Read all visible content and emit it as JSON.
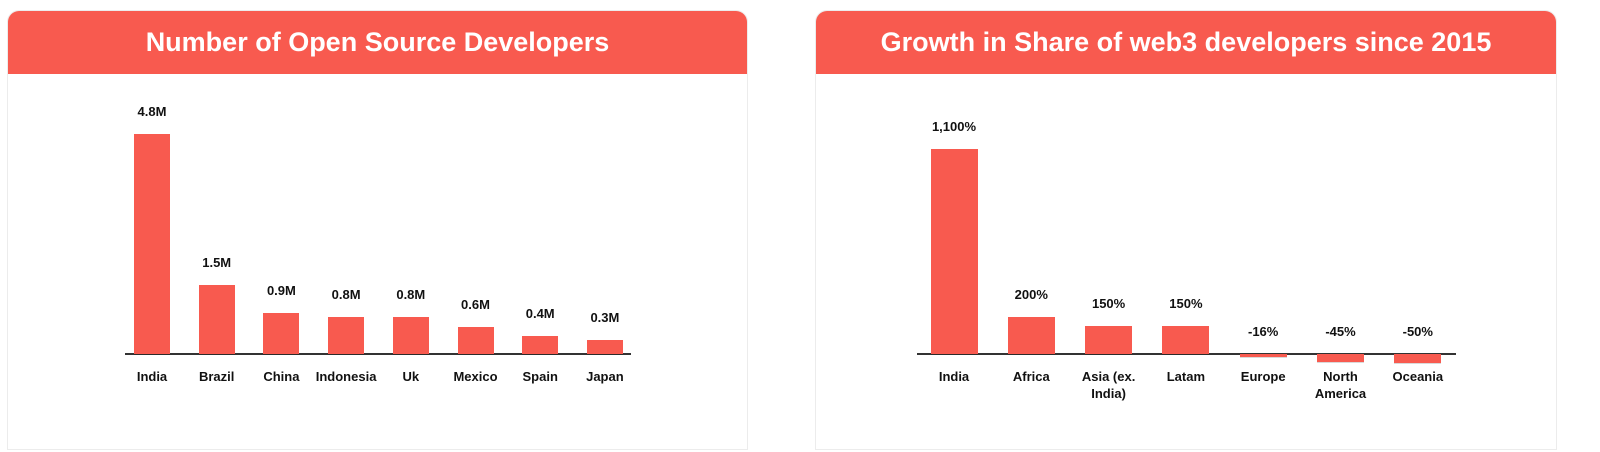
{
  "chart_data": [
    {
      "type": "bar",
      "title": "Number of Open Source Developers",
      "color": "#f85a4f",
      "categories": [
        "India",
        "Brazil",
        "China",
        "Indonesia",
        "Uk",
        "Mexico",
        "Spain",
        "Japan"
      ],
      "values": [
        4.8,
        1.5,
        0.9,
        0.8,
        0.8,
        0.6,
        0.4,
        0.3
      ],
      "value_labels": [
        "4.8M",
        "1.5M",
        "0.9M",
        "0.8M",
        "0.8M",
        "0.6M",
        "0.4M",
        "0.3M"
      ]
    },
    {
      "type": "bar",
      "title": "Growth in Share of web3 developers since 2015",
      "color": "#f85a4f",
      "categories": [
        "India",
        "Africa",
        "Asia (ex. India)",
        "Latam",
        "Europe",
        "North America",
        "Oceania"
      ],
      "values": [
        1100,
        200,
        150,
        150,
        -16,
        -45,
        -50
      ],
      "value_labels": [
        "1,100%",
        "200%",
        "150%",
        "150%",
        "-16%",
        "-45%",
        "-50%"
      ]
    }
  ]
}
